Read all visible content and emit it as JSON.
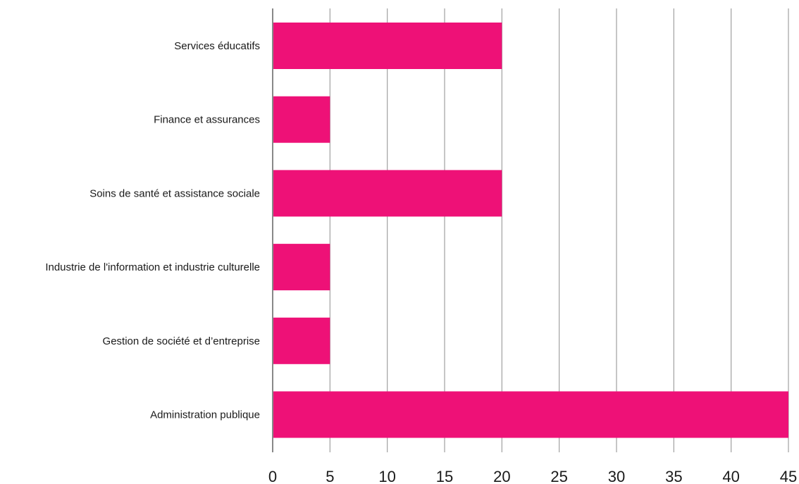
{
  "chart_data": {
    "type": "bar",
    "orientation": "horizontal",
    "categories": [
      "Services éducatifs",
      "Finance et assurances",
      "Soins de santé et assistance sociale",
      "Industrie de l'information et industrie culturelle",
      "Gestion de société et d’entreprise",
      "Administration publique"
    ],
    "values": [
      20,
      5,
      20,
      5,
      5,
      45
    ],
    "xlim": [
      0,
      45
    ],
    "xticks": [
      "0",
      "5",
      "10",
      "15",
      "20",
      "25",
      "30",
      "35",
      "40",
      "45"
    ],
    "grid": true,
    "legend": "none",
    "bar_color": "#ee1177",
    "grid_color": "#a0a0a0"
  }
}
